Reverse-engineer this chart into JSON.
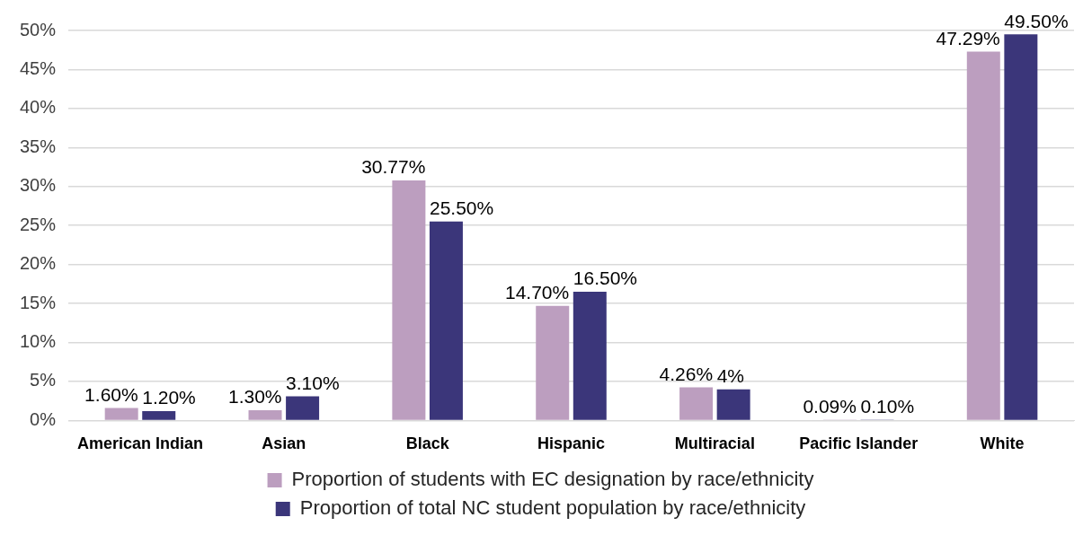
{
  "chart_data": {
    "type": "bar",
    "categories": [
      "American Indian",
      "Asian",
      "Black",
      "Hispanic",
      "Multiracial",
      "Pacific Islander",
      "White"
    ],
    "series": [
      {
        "name": "Proportion of students with EC designation by race/ethnicity",
        "color": "#bc9ebf",
        "values": [
          1.6,
          1.3,
          30.77,
          14.7,
          4.26,
          0.09,
          47.29
        ],
        "value_labels": [
          "1.60%",
          "1.30%",
          "30.77%",
          "14.70%",
          "4.26%",
          "0.09%",
          "47.29%"
        ]
      },
      {
        "name": "Proportion of total NC student population by race/ethnicity",
        "color": "#3b367a",
        "values": [
          1.2,
          3.1,
          25.5,
          16.5,
          4,
          0.1,
          49.5
        ],
        "value_labels": [
          "1.20%",
          "3.10%",
          "25.50%",
          "16.50%",
          "4%",
          "0.10%",
          "49.50%"
        ]
      }
    ],
    "ylim": [
      0,
      50
    ],
    "yticks": [
      {
        "value": 0,
        "label": "0%"
      },
      {
        "value": 5,
        "label": "5%"
      },
      {
        "value": 10,
        "label": "10%"
      },
      {
        "value": 15,
        "label": "15%"
      },
      {
        "value": 20,
        "label": "20%"
      },
      {
        "value": 25,
        "label": "25%"
      },
      {
        "value": 30,
        "label": "30%"
      },
      {
        "value": 35,
        "label": "35%"
      },
      {
        "value": 40,
        "label": "40%"
      },
      {
        "value": 45,
        "label": "45%"
      },
      {
        "value": 50,
        "label": "50%"
      }
    ],
    "grid": "y",
    "legend": "bottom"
  }
}
